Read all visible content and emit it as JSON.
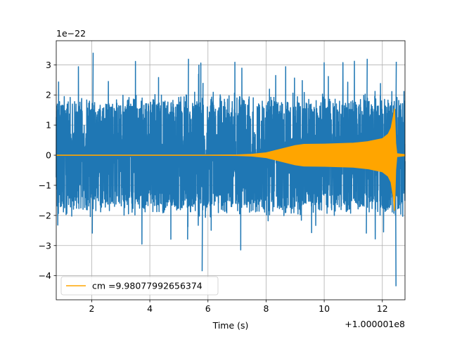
{
  "chart_data": {
    "type": "line",
    "title": "",
    "xlabel": "Time (s)",
    "ylabel": "",
    "x_offset_label": "+1.000001e8",
    "y_scale_label": "1e−22",
    "xlim": [
      0.78,
      12.78
    ],
    "ylim": [
      -4.8,
      3.8
    ],
    "xticks": [
      2,
      4,
      6,
      8,
      10,
      12
    ],
    "xtick_labels": [
      "2",
      "4",
      "6",
      "8",
      "10",
      "12"
    ],
    "yticks": [
      -4,
      -3,
      -2,
      -1,
      0,
      1,
      2,
      3
    ],
    "ytick_labels": [
      "−4",
      "−3",
      "−2",
      "−1",
      "0",
      "1",
      "2",
      "3"
    ],
    "grid": true,
    "legend_position": "lower-left",
    "series": [
      {
        "color": "#1f77b4",
        "description": "noisy strain data, approx. ±2 amplitude with extremes near 3.4 and -4.3",
        "envelope": {
          "typical_amplitude": 1.9,
          "max_value": 3.4,
          "min_value": -4.35,
          "min_at_x": 12.45
        }
      },
      {
        "name": "cm =9.98077992656374",
        "color": "#ffa500",
        "envelope": {
          "x": [
            0.78,
            6.0,
            7.0,
            7.5,
            8.0,
            8.5,
            9.0,
            9.3,
            10.0,
            11.0,
            11.5,
            12.0,
            12.2,
            12.3,
            12.38,
            12.42,
            12.46,
            12.5,
            12.78
          ],
          "upper": [
            0.0,
            0.0,
            0.01,
            0.03,
            0.08,
            0.2,
            0.32,
            0.36,
            0.37,
            0.4,
            0.45,
            0.55,
            0.7,
            0.9,
            1.3,
            1.55,
            0.4,
            0.05,
            0.02
          ],
          "lower": [
            0.0,
            0.0,
            -0.01,
            -0.03,
            -0.08,
            -0.2,
            -0.32,
            -0.36,
            -0.37,
            -0.4,
            -0.45,
            -0.55,
            -0.7,
            -0.9,
            -1.4,
            -1.85,
            -0.5,
            -0.05,
            -0.02
          ]
        }
      }
    ]
  }
}
